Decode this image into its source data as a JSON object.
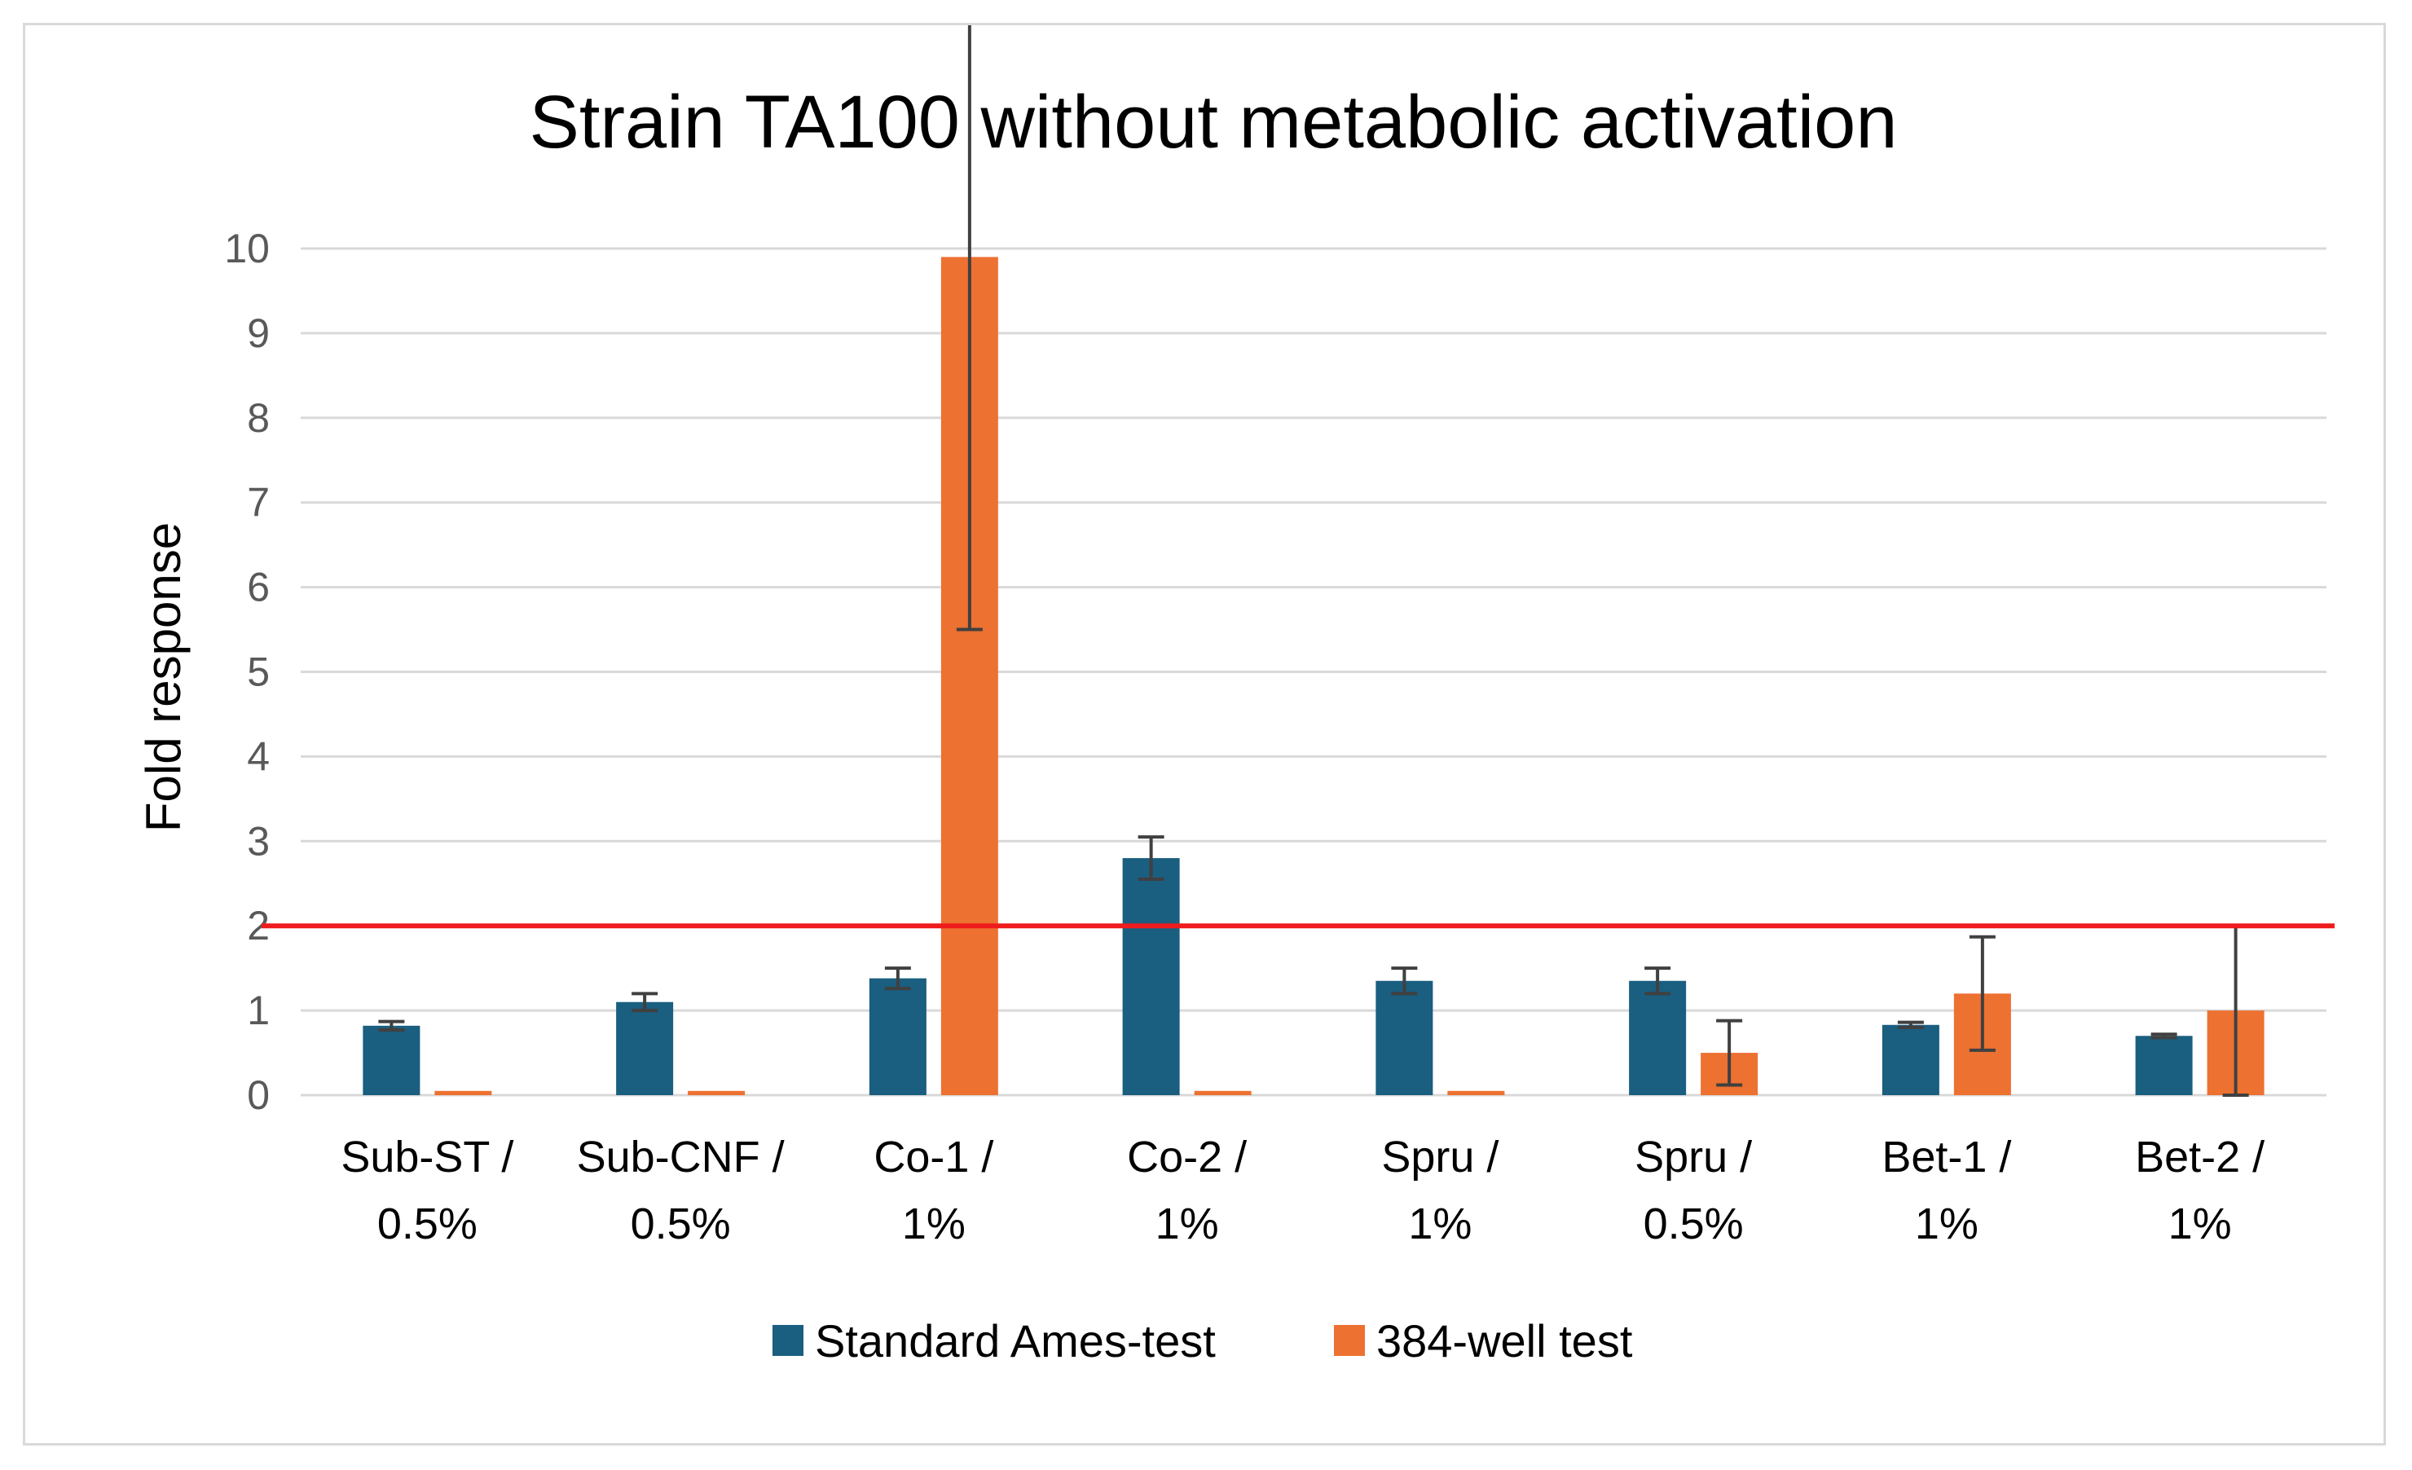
{
  "chart_data": {
    "type": "bar",
    "title": "Strain TA100 without metabolic activation",
    "xlabel": "",
    "ylabel": "Fold response",
    "ylim": [
      0,
      10
    ],
    "yticks": [
      0,
      1,
      2,
      3,
      4,
      5,
      6,
      7,
      8,
      9,
      10
    ],
    "grid": true,
    "legend_position": "bottom",
    "categories": [
      [
        "Sub-ST /",
        "0.5%"
      ],
      [
        "Sub-CNF /",
        "0.5%"
      ],
      [
        "Co-1 /",
        "1%"
      ],
      [
        "Co-2 /",
        "1%"
      ],
      [
        "Spru /",
        "1%"
      ],
      [
        "Spru /",
        "0.5%"
      ],
      [
        "Bet-1 /",
        "1%"
      ],
      [
        "Bet-2 /",
        "1%"
      ]
    ],
    "series": [
      {
        "name": "Standard Ames-test",
        "color": "#1a5e80",
        "values": [
          0.82,
          1.1,
          1.38,
          2.8,
          1.35,
          1.35,
          0.83,
          0.7
        ],
        "errors": [
          0.05,
          0.1,
          0.12,
          0.25,
          0.15,
          0.15,
          0.03,
          0.02
        ]
      },
      {
        "name": "384-well test",
        "color": "#ed7131",
        "values": [
          0.05,
          0.05,
          9.9,
          0.05,
          0.05,
          0.5,
          1.2,
          1.0
        ],
        "errors": [
          0,
          0,
          4.4,
          0,
          0,
          0.38,
          0.67,
          1.0
        ]
      }
    ],
    "threshold": {
      "value": 2,
      "color": "#ee1c1c"
    },
    "grid_color": "#d9d9d9",
    "errorbar_color": "#404040"
  }
}
